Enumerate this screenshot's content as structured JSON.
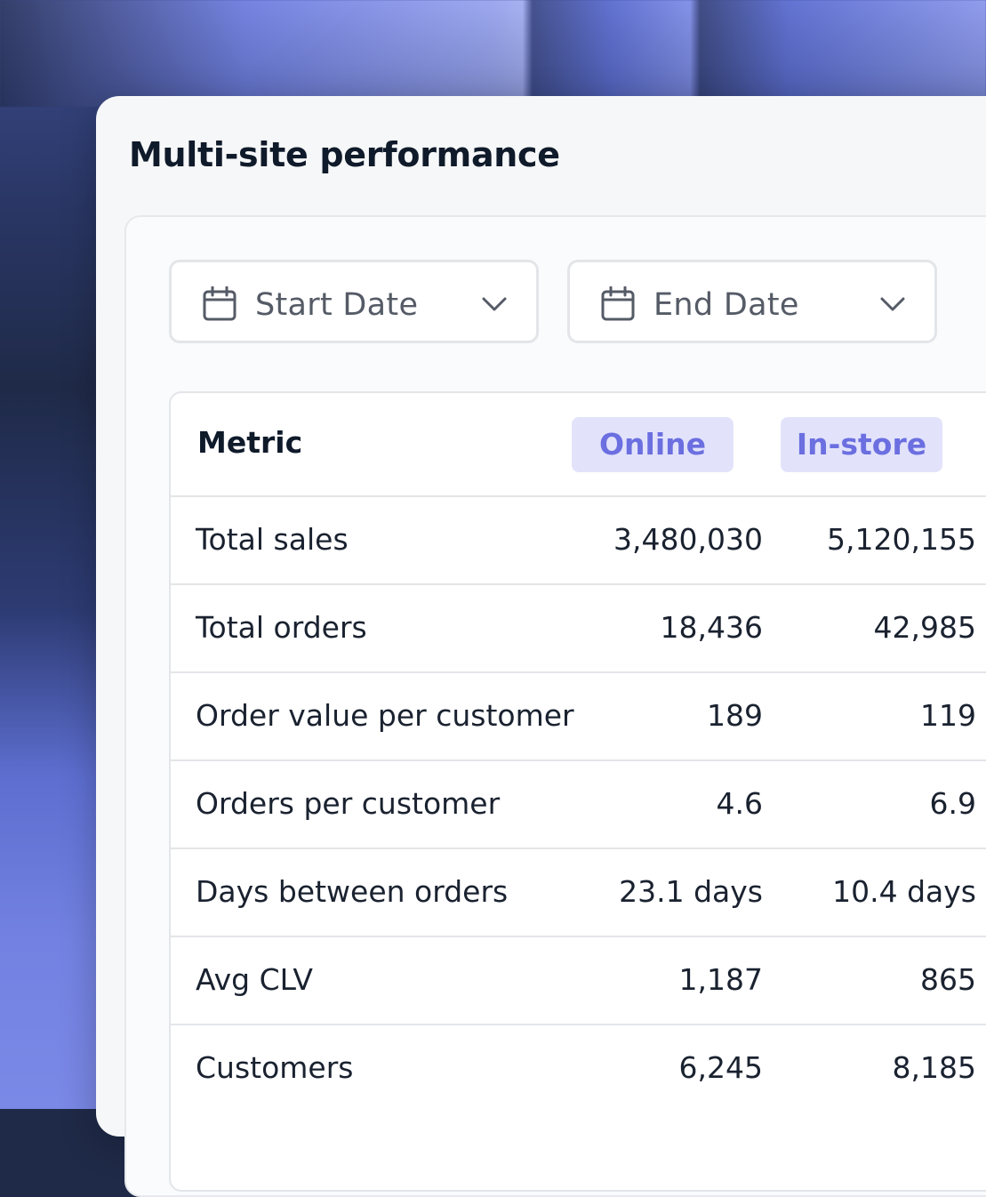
{
  "card": {
    "title": "Multi-site performance"
  },
  "filters": {
    "start_date_label": "Start Date",
    "end_date_label": "End Date"
  },
  "table": {
    "headers": {
      "metric": "Metric",
      "online": "Online",
      "instore": "In-store"
    },
    "rows": [
      {
        "metric": "Total sales",
        "online": "3,480,030",
        "instore": "5,120,155"
      },
      {
        "metric": "Total orders",
        "online": "18,436",
        "instore": "42,985"
      },
      {
        "metric": "Order value per customer",
        "online": "189",
        "instore": "119"
      },
      {
        "metric": "Orders per customer",
        "online": "4.6",
        "instore": "6.9"
      },
      {
        "metric": "Days between orders",
        "online": "23.1 days",
        "instore": "10.4 days"
      },
      {
        "metric": "Avg CLV",
        "online": "1,187",
        "instore": "865"
      },
      {
        "metric": "Customers",
        "online": "6,245",
        "instore": "8,185"
      }
    ]
  },
  "colors": {
    "accent": "#6b6fe0",
    "pill_background": "#e2e3fb",
    "card_background": "#f6f7f8"
  },
  "icons": {
    "date_picker": "calendar-icon",
    "dropdown": "chevron-down-icon"
  }
}
